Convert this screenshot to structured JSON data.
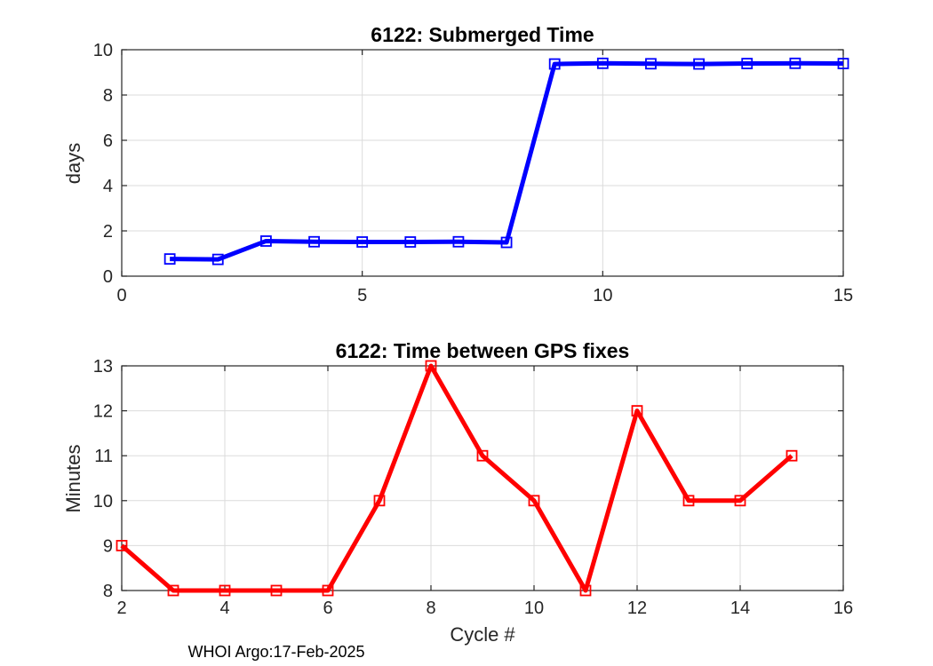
{
  "figure": {
    "background": "#FFFFFF",
    "axis_color": "#262626",
    "grid_color": "#DBDBDB",
    "footer": "WHOI Argo:17-Feb-2025"
  },
  "chart_data": [
    {
      "type": "line",
      "title": "6122: Submerged Time",
      "xlabel": "",
      "ylabel": "days",
      "x": [
        1,
        2,
        3,
        4,
        5,
        6,
        7,
        8,
        9,
        10,
        11,
        12,
        13,
        14,
        15
      ],
      "y": [
        0.76,
        0.74,
        1.55,
        1.52,
        1.51,
        1.51,
        1.52,
        1.49,
        9.37,
        9.4,
        9.38,
        9.37,
        9.39,
        9.4,
        9.39
      ],
      "series_color": "#0000FF",
      "marker": "open-square",
      "line_width": 5,
      "xlim": [
        0,
        15
      ],
      "ylim": [
        0,
        10
      ],
      "xticks": [
        0,
        5,
        10,
        15
      ],
      "yticks": [
        0,
        2,
        4,
        6,
        8,
        10
      ],
      "grid": true,
      "legend": "none"
    },
    {
      "type": "line",
      "title": "6122: Time between GPS fixes",
      "xlabel": "Cycle #",
      "ylabel": "Minutes",
      "x": [
        2,
        3,
        4,
        5,
        6,
        7,
        8,
        9,
        10,
        11,
        12,
        13,
        14,
        15
      ],
      "y": [
        9,
        8,
        8,
        8,
        8,
        10,
        13,
        11,
        10,
        8,
        12,
        10,
        10,
        11
      ],
      "series_color": "#FF0000",
      "marker": "open-square",
      "line_width": 5,
      "xlim": [
        2,
        16
      ],
      "ylim": [
        8,
        13
      ],
      "xticks": [
        2,
        4,
        6,
        8,
        10,
        12,
        14,
        16
      ],
      "yticks": [
        8,
        9,
        10,
        11,
        12,
        13
      ],
      "grid": true,
      "legend": "none"
    }
  ]
}
